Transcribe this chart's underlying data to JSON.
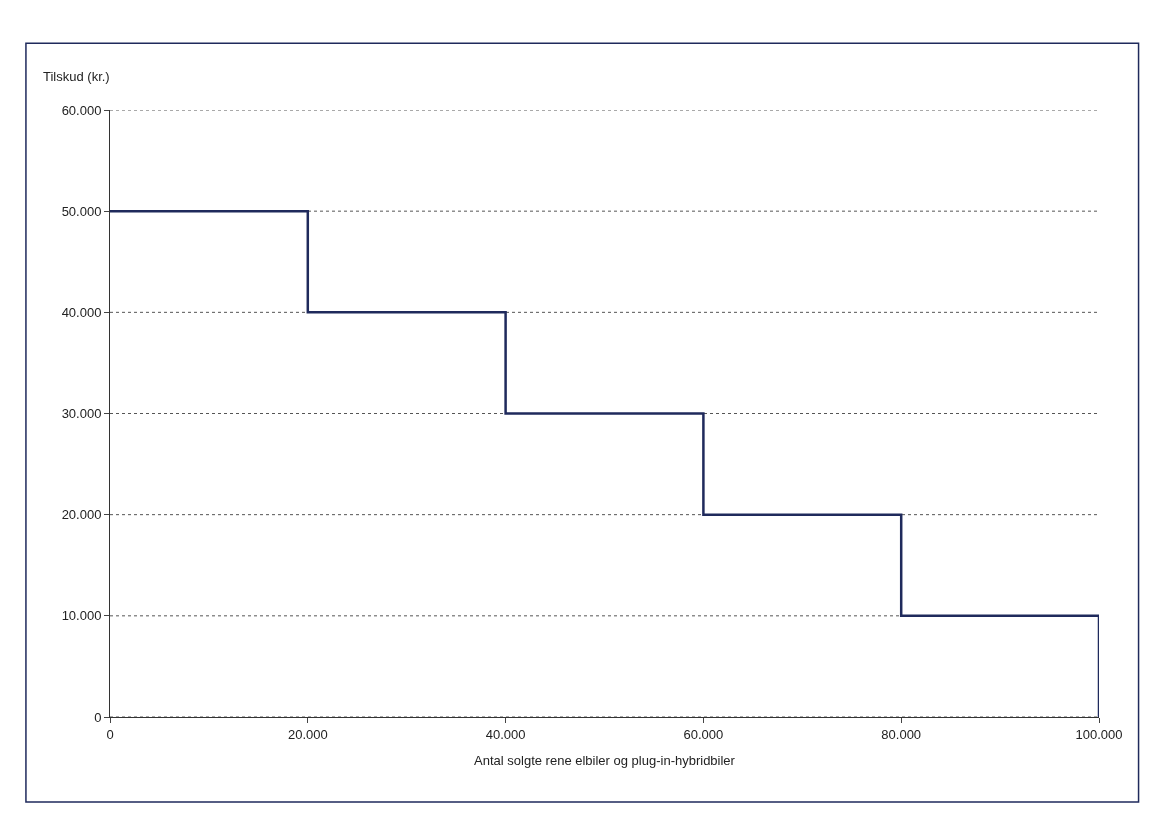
{
  "chart_data": {
    "type": "step",
    "ylabel": "Tilskud (kr.)",
    "xlabel": "Antal solgte rene elbiler og plug-in-hybridbiler",
    "x": [
      0,
      20000,
      40000,
      60000,
      80000,
      100000,
      100000
    ],
    "series": [
      {
        "color": "#1f2a5c",
        "values": [
          50000,
          40000,
          30000,
          20000,
          10000,
          10000,
          0
        ]
      }
    ],
    "xlim": [
      0,
      100000
    ],
    "xticks": [
      0,
      {
        "value": 20000,
        "label": "20.000"
      },
      {
        "value": 40000,
        "label": "40.000"
      },
      {
        "value": 60000,
        "label": "60.000"
      },
      {
        "value": 80000,
        "label": "80.000"
      },
      {
        "value": 100000,
        "label": "100.000"
      }
    ],
    "ylim": [
      0,
      60000
    ],
    "yticks": [
      0,
      {
        "value": 10000,
        "label": "10.000"
      },
      {
        "value": 20000,
        "label": "20.000"
      },
      {
        "value": 30000,
        "label": "30.000"
      },
      {
        "value": 40000,
        "label": "40.000"
      },
      {
        "value": 50000,
        "label": "50.000"
      },
      {
        "value": 60000,
        "label": "60.000"
      }
    ],
    "grid": "y",
    "marker": "none",
    "line_style": "solid"
  }
}
